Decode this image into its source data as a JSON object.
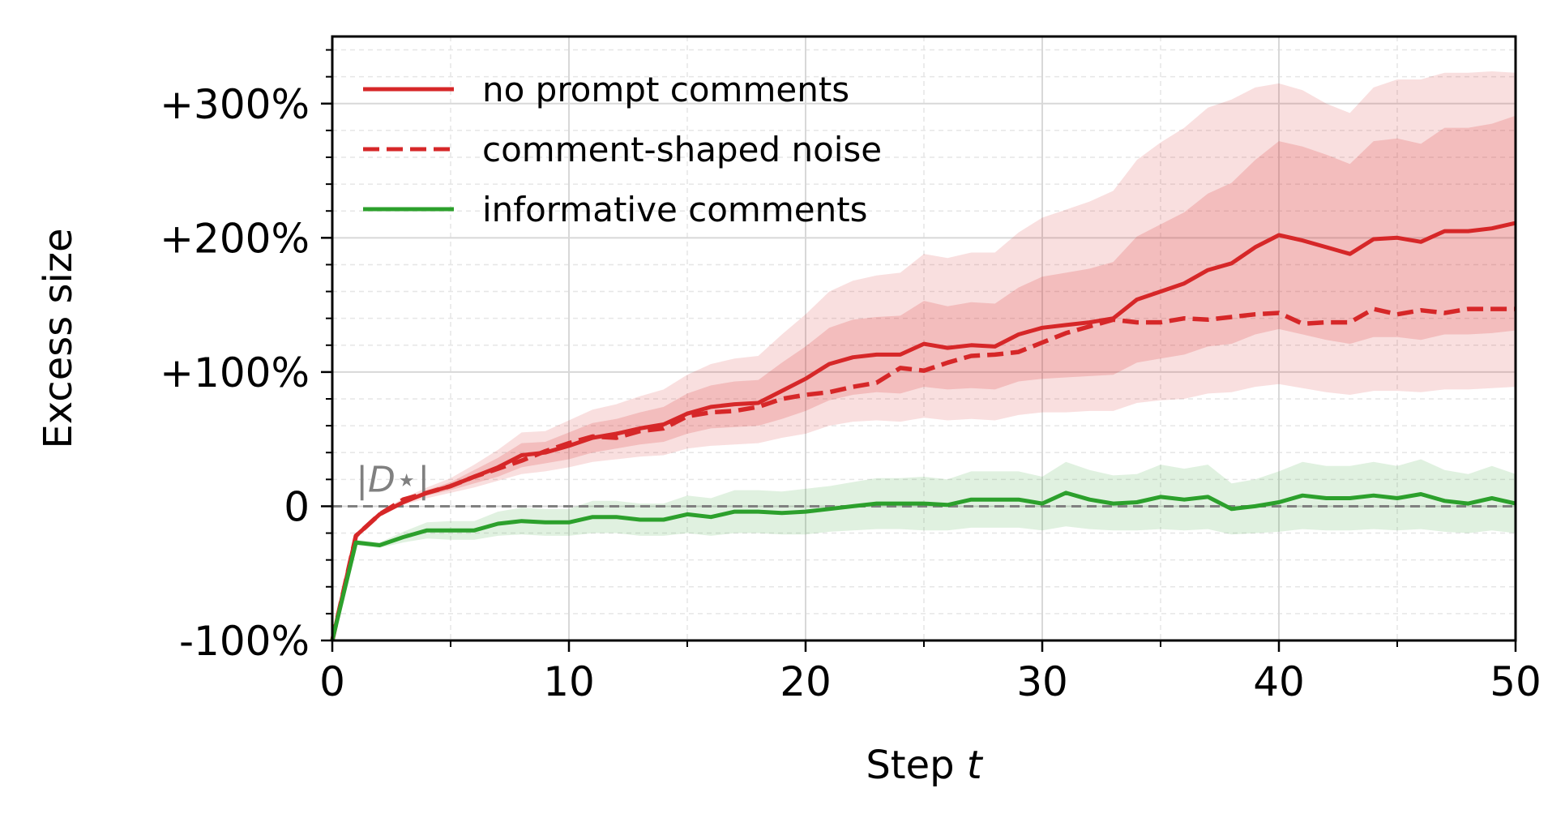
{
  "chart_data": {
    "type": "line",
    "xlabel": "Step t",
    "ylabel": "Excess size",
    "xlim": [
      0,
      50
    ],
    "ylim": [
      -100,
      350
    ],
    "x_ticks": [
      0,
      10,
      20,
      30,
      40,
      50
    ],
    "x_tick_labels": [
      "0",
      "10",
      "20",
      "30",
      "40",
      "50"
    ],
    "y_ticks": [
      -100,
      0,
      100,
      200,
      300
    ],
    "y_tick_labels": [
      "-100%",
      "0",
      "+100%",
      "+200%",
      "+300%"
    ],
    "grid": true,
    "legend_position": "top-left",
    "reference_line": {
      "y": 0,
      "label": "|D⋆|",
      "color": "#808080",
      "style": "dashed"
    },
    "x": [
      0,
      1,
      2,
      3,
      4,
      5,
      6,
      7,
      8,
      9,
      10,
      11,
      12,
      13,
      14,
      15,
      16,
      17,
      18,
      19,
      20,
      21,
      22,
      23,
      24,
      25,
      26,
      27,
      28,
      29,
      30,
      31,
      32,
      33,
      34,
      35,
      36,
      37,
      38,
      39,
      40,
      41,
      42,
      43,
      44,
      45,
      46,
      47,
      48,
      49,
      50
    ],
    "series": [
      {
        "name": "no prompt comments",
        "color": "#d62728",
        "style": "solid",
        "values": [
          -100,
          -22,
          -6,
          3,
          10,
          15,
          22,
          29,
          38,
          40,
          45,
          51,
          54,
          58,
          61,
          69,
          74,
          76,
          77,
          86,
          95,
          106,
          111,
          113,
          113,
          121,
          118,
          120,
          119,
          128,
          133,
          135,
          137,
          140,
          154,
          160,
          166,
          176,
          181,
          193,
          202,
          198,
          193,
          188,
          199,
          200,
          197,
          205,
          205,
          207,
          211
        ],
        "band_inner": {
          "lower": [
            -100,
            -22,
            -7,
            2,
            8,
            12,
            17,
            22,
            29,
            32,
            35,
            40,
            43,
            46,
            48,
            54,
            58,
            59,
            60,
            65,
            71,
            79,
            83,
            85,
            84,
            89,
            87,
            88,
            87,
            93,
            95,
            96,
            97,
            98,
            107,
            110,
            113,
            119,
            121,
            128,
            132,
            128,
            124,
            121,
            126,
            126,
            124,
            128,
            128,
            129,
            131
          ],
          "upper": [
            -100,
            -22,
            -5,
            5,
            12,
            18,
            27,
            36,
            47,
            48,
            55,
            62,
            65,
            70,
            74,
            84,
            90,
            93,
            94,
            107,
            119,
            133,
            139,
            141,
            142,
            153,
            149,
            152,
            151,
            163,
            171,
            174,
            177,
            182,
            201,
            210,
            219,
            233,
            241,
            258,
            272,
            268,
            262,
            255,
            272,
            274,
            270,
            282,
            282,
            285,
            291
          ]
        },
        "band_outer": {
          "lower": [
            -100,
            -22,
            -8,
            1,
            6,
            10,
            14,
            19,
            24,
            26,
            29,
            33,
            35,
            37,
            38,
            43,
            45,
            46,
            47,
            51,
            54,
            60,
            63,
            64,
            63,
            66,
            64,
            65,
            64,
            68,
            70,
            70,
            71,
            71,
            77,
            79,
            80,
            84,
            85,
            89,
            91,
            88,
            85,
            83,
            86,
            86,
            85,
            87,
            87,
            88,
            89
          ],
          "upper": [
            -100,
            -21,
            -4,
            6,
            14,
            21,
            31,
            42,
            55,
            56,
            64,
            72,
            76,
            82,
            87,
            98,
            106,
            110,
            112,
            128,
            143,
            160,
            168,
            172,
            174,
            188,
            185,
            189,
            189,
            204,
            215,
            221,
            227,
            235,
            258,
            271,
            282,
            297,
            303,
            312,
            315,
            310,
            300,
            293,
            312,
            318,
            318,
            323,
            323,
            324,
            323
          ]
        }
      },
      {
        "name": "comment-shaped noise",
        "color": "#d62728",
        "style": "dashed",
        "values": [
          -100,
          -22,
          -6,
          5,
          10,
          15,
          22,
          28,
          34,
          41,
          47,
          52,
          51,
          56,
          58,
          67,
          70,
          71,
          74,
          80,
          83,
          85,
          89,
          92,
          103,
          101,
          107,
          112,
          113,
          115,
          122,
          129,
          134,
          139,
          137,
          137,
          140,
          139,
          141,
          143,
          144,
          136,
          137,
          137,
          147,
          143,
          146,
          144,
          147,
          147,
          147
        ]
      },
      {
        "name": "informative comments",
        "color": "#2ca02c",
        "style": "solid",
        "values": [
          -100,
          -27,
          -29,
          -23,
          -18,
          -18,
          -18,
          -13,
          -11,
          -12,
          -12,
          -8,
          -8,
          -10,
          -10,
          -6,
          -8,
          -4,
          -4,
          -5,
          -4,
          -2,
          0,
          2,
          2,
          2,
          1,
          5,
          5,
          5,
          2,
          10,
          5,
          2,
          3,
          7,
          5,
          7,
          -2,
          0,
          3,
          8,
          6,
          6,
          8,
          6,
          9,
          4,
          2,
          6,
          2
        ],
        "band": {
          "lower": [
            -100,
            -29,
            -31,
            -27,
            -24,
            -25,
            -25,
            -22,
            -21,
            -22,
            -22,
            -20,
            -20,
            -22,
            -22,
            -20,
            -22,
            -20,
            -20,
            -21,
            -21,
            -19,
            -18,
            -17,
            -17,
            -18,
            -18,
            -16,
            -16,
            -16,
            -18,
            -15,
            -17,
            -18,
            -18,
            -17,
            -18,
            -17,
            -21,
            -20,
            -19,
            -17,
            -18,
            -18,
            -17,
            -18,
            -17,
            -19,
            -20,
            -18,
            -20
          ],
          "upper": [
            -100,
            -25,
            -27,
            -19,
            -12,
            -11,
            -11,
            -4,
            -1,
            -2,
            -2,
            4,
            4,
            2,
            2,
            8,
            6,
            12,
            12,
            11,
            13,
            15,
            18,
            21,
            21,
            22,
            20,
            26,
            26,
            26,
            22,
            33,
            27,
            23,
            24,
            31,
            28,
            31,
            17,
            20,
            26,
            33,
            30,
            30,
            33,
            30,
            35,
            27,
            24,
            30,
            24
          ]
        }
      }
    ]
  }
}
